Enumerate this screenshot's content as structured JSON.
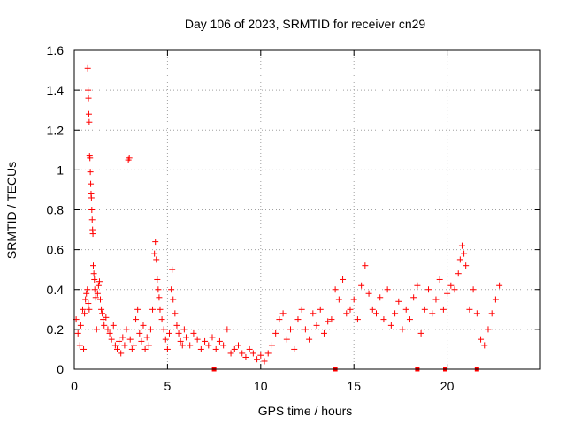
{
  "chart_data": {
    "type": "scatter",
    "title": "Day 106 of 2023, SRMTID for receiver cn29",
    "xlabel": "GPS time / hours",
    "ylabel": "SRMTID / TECUs",
    "xlim": [
      0,
      25
    ],
    "ylim": [
      0,
      1.6
    ],
    "xticks": [
      0,
      5,
      10,
      15,
      20
    ],
    "xtick_labels": [
      "0",
      "5",
      "10",
      "15",
      "20"
    ],
    "yticks": [
      0,
      0.2,
      0.4,
      0.6,
      0.8,
      1.0,
      1.2,
      1.4,
      1.6
    ],
    "ytick_labels": [
      "0",
      "0.2",
      "0.4",
      "0.6",
      "0.8",
      "1",
      "1.2",
      "1.4",
      "1.6"
    ],
    "grid": true,
    "marker": "+",
    "color": "#ff0000",
    "series": [
      {
        "name": "SRMTID",
        "points": [
          [
            0.1,
            0.25
          ],
          [
            0.2,
            0.18
          ],
          [
            0.3,
            0.12
          ],
          [
            0.35,
            0.22
          ],
          [
            0.45,
            0.3
          ],
          [
            0.5,
            0.1
          ],
          [
            0.55,
            0.28
          ],
          [
            0.6,
            0.35
          ],
          [
            0.65,
            0.38
          ],
          [
            0.7,
            0.4
          ],
          [
            0.75,
            0.33
          ],
          [
            0.8,
            0.3
          ],
          [
            0.72,
            1.51
          ],
          [
            0.74,
            1.4
          ],
          [
            0.76,
            1.36
          ],
          [
            0.78,
            1.28
          ],
          [
            0.8,
            1.24
          ],
          [
            0.82,
            1.07
          ],
          [
            0.84,
            1.06
          ],
          [
            0.86,
            0.99
          ],
          [
            0.88,
            0.93
          ],
          [
            0.9,
            0.88
          ],
          [
            0.92,
            0.86
          ],
          [
            0.94,
            0.8
          ],
          [
            0.96,
            0.75
          ],
          [
            0.98,
            0.7
          ],
          [
            1.0,
            0.68
          ],
          [
            1.02,
            0.52
          ],
          [
            1.05,
            0.48
          ],
          [
            1.08,
            0.45
          ],
          [
            1.1,
            0.4
          ],
          [
            1.15,
            0.36
          ],
          [
            1.2,
            0.2
          ],
          [
            1.25,
            0.38
          ],
          [
            1.3,
            0.42
          ],
          [
            1.35,
            0.44
          ],
          [
            1.4,
            0.35
          ],
          [
            1.45,
            0.3
          ],
          [
            1.5,
            0.28
          ],
          [
            1.55,
            0.25
          ],
          [
            1.6,
            0.22
          ],
          [
            1.7,
            0.26
          ],
          [
            1.8,
            0.2
          ],
          [
            1.9,
            0.18
          ],
          [
            2.0,
            0.15
          ],
          [
            2.1,
            0.22
          ],
          [
            2.2,
            0.12
          ],
          [
            2.3,
            0.1
          ],
          [
            2.4,
            0.14
          ],
          [
            2.5,
            0.08
          ],
          [
            2.6,
            0.16
          ],
          [
            2.7,
            0.12
          ],
          [
            2.8,
            0.2
          ],
          [
            2.9,
            1.05
          ],
          [
            2.95,
            1.06
          ],
          [
            3.0,
            0.15
          ],
          [
            3.1,
            0.1
          ],
          [
            3.2,
            0.12
          ],
          [
            3.3,
            0.25
          ],
          [
            3.4,
            0.3
          ],
          [
            3.5,
            0.18
          ],
          [
            3.6,
            0.14
          ],
          [
            3.7,
            0.22
          ],
          [
            3.8,
            0.1
          ],
          [
            3.9,
            0.16
          ],
          [
            4.0,
            0.12
          ],
          [
            4.1,
            0.2
          ],
          [
            4.2,
            0.3
          ],
          [
            4.3,
            0.58
          ],
          [
            4.35,
            0.64
          ],
          [
            4.4,
            0.55
          ],
          [
            4.45,
            0.45
          ],
          [
            4.5,
            0.4
          ],
          [
            4.55,
            0.36
          ],
          [
            4.6,
            0.3
          ],
          [
            4.7,
            0.25
          ],
          [
            4.8,
            0.2
          ],
          [
            4.9,
            0.15
          ],
          [
            5.0,
            0.1
          ],
          [
            5.1,
            0.18
          ],
          [
            5.2,
            0.4
          ],
          [
            5.25,
            0.5
          ],
          [
            5.3,
            0.35
          ],
          [
            5.4,
            0.28
          ],
          [
            5.5,
            0.22
          ],
          [
            5.6,
            0.18
          ],
          [
            5.7,
            0.14
          ],
          [
            5.8,
            0.12
          ],
          [
            5.9,
            0.2
          ],
          [
            6.0,
            0.16
          ],
          [
            6.2,
            0.12
          ],
          [
            6.4,
            0.18
          ],
          [
            6.6,
            0.15
          ],
          [
            6.8,
            0.1
          ],
          [
            7.0,
            0.14
          ],
          [
            7.2,
            0.12
          ],
          [
            7.4,
            0.16
          ],
          [
            7.6,
            0.1
          ],
          [
            7.8,
            0.14
          ],
          [
            8.0,
            0.12
          ],
          [
            8.2,
            0.2
          ],
          [
            8.4,
            0.08
          ],
          [
            8.6,
            0.1
          ],
          [
            8.8,
            0.12
          ],
          [
            9.0,
            0.08
          ],
          [
            9.2,
            0.06
          ],
          [
            9.4,
            0.1
          ],
          [
            9.6,
            0.08
          ],
          [
            9.8,
            0.05
          ],
          [
            10.0,
            0.07
          ],
          [
            10.2,
            0.04
          ],
          [
            10.4,
            0.08
          ],
          [
            10.6,
            0.12
          ],
          [
            10.8,
            0.18
          ],
          [
            11.0,
            0.25
          ],
          [
            11.2,
            0.28
          ],
          [
            11.4,
            0.15
          ],
          [
            11.6,
            0.2
          ],
          [
            11.8,
            0.1
          ],
          [
            12.0,
            0.25
          ],
          [
            12.2,
            0.3
          ],
          [
            12.4,
            0.2
          ],
          [
            12.6,
            0.15
          ],
          [
            12.8,
            0.28
          ],
          [
            13.0,
            0.22
          ],
          [
            13.2,
            0.3
          ],
          [
            13.4,
            0.18
          ],
          [
            13.6,
            0.24
          ],
          [
            13.8,
            0.25
          ],
          [
            14.0,
            0.4
          ],
          [
            14.2,
            0.35
          ],
          [
            14.4,
            0.45
          ],
          [
            14.6,
            0.28
          ],
          [
            14.8,
            0.3
          ],
          [
            15.0,
            0.35
          ],
          [
            15.2,
            0.25
          ],
          [
            15.4,
            0.42
          ],
          [
            15.6,
            0.52
          ],
          [
            15.8,
            0.38
          ],
          [
            16.0,
            0.3
          ],
          [
            16.2,
            0.28
          ],
          [
            16.4,
            0.36
          ],
          [
            16.6,
            0.25
          ],
          [
            16.8,
            0.4
          ],
          [
            17.0,
            0.22
          ],
          [
            17.2,
            0.28
          ],
          [
            17.4,
            0.34
          ],
          [
            17.6,
            0.2
          ],
          [
            17.8,
            0.3
          ],
          [
            18.0,
            0.25
          ],
          [
            18.2,
            0.36
          ],
          [
            18.4,
            0.42
          ],
          [
            18.6,
            0.18
          ],
          [
            18.8,
            0.3
          ],
          [
            19.0,
            0.4
          ],
          [
            19.2,
            0.28
          ],
          [
            19.4,
            0.35
          ],
          [
            19.6,
            0.45
          ],
          [
            19.8,
            0.3
          ],
          [
            20.0,
            0.38
          ],
          [
            20.2,
            0.42
          ],
          [
            20.4,
            0.4
          ],
          [
            20.6,
            0.48
          ],
          [
            20.7,
            0.55
          ],
          [
            20.8,
            0.62
          ],
          [
            20.9,
            0.58
          ],
          [
            21.0,
            0.52
          ],
          [
            21.2,
            0.3
          ],
          [
            21.4,
            0.4
          ],
          [
            21.6,
            0.28
          ],
          [
            21.8,
            0.15
          ],
          [
            22.0,
            0.12
          ],
          [
            22.2,
            0.2
          ],
          [
            22.4,
            0.28
          ],
          [
            22.6,
            0.35
          ],
          [
            22.8,
            0.42
          ]
        ]
      }
    ],
    "gap_markers_x": [
      7.5,
      14.0,
      18.4,
      19.9,
      21.6
    ]
  }
}
